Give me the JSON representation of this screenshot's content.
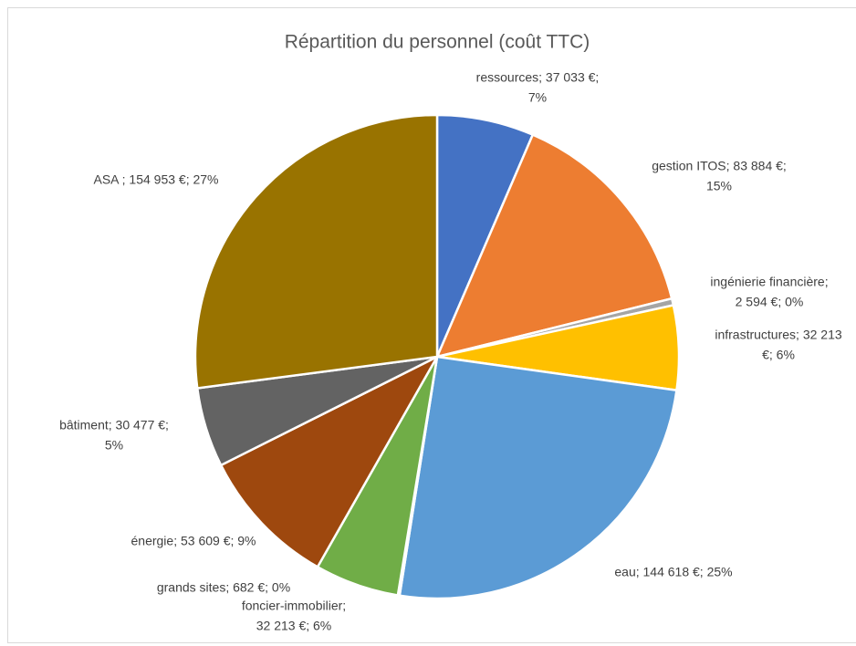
{
  "chart_data": {
    "type": "pie",
    "title": "Répartition du personnel (coût TTC)",
    "values": [
      37033,
      83884,
      2594,
      32213,
      144618,
      682,
      32213,
      53609,
      30477,
      154953
    ],
    "colors": [
      "#4472c4",
      "#ed7d31",
      "#a5a5a5",
      "#ffc000",
      "#5b9bd5",
      "#264478",
      "#70ad47",
      "#9e480e",
      "#636363",
      "#997300"
    ],
    "value_labels": [
      [
        "ressources; 37 033 €;",
        "7%"
      ],
      [
        "gestion ITOS; 83 884 €;",
        "15%"
      ],
      [
        "ingénierie financière;",
        "2 594 €; 0%"
      ],
      [
        "infrastructures; 32 213",
        "€; 6%"
      ],
      [
        "eau; 144 618 €; 25%"
      ],
      [
        "grands sites; 682 €; 0%"
      ],
      [
        "foncier-immobilier;",
        "32 213 €; 6%"
      ],
      [
        "énergie; 53 609 €; 9%"
      ],
      [
        "bâtiment; 30 477 €;",
        "5%"
      ],
      [
        "ASA ; 154 953 €; 27%"
      ]
    ]
  }
}
